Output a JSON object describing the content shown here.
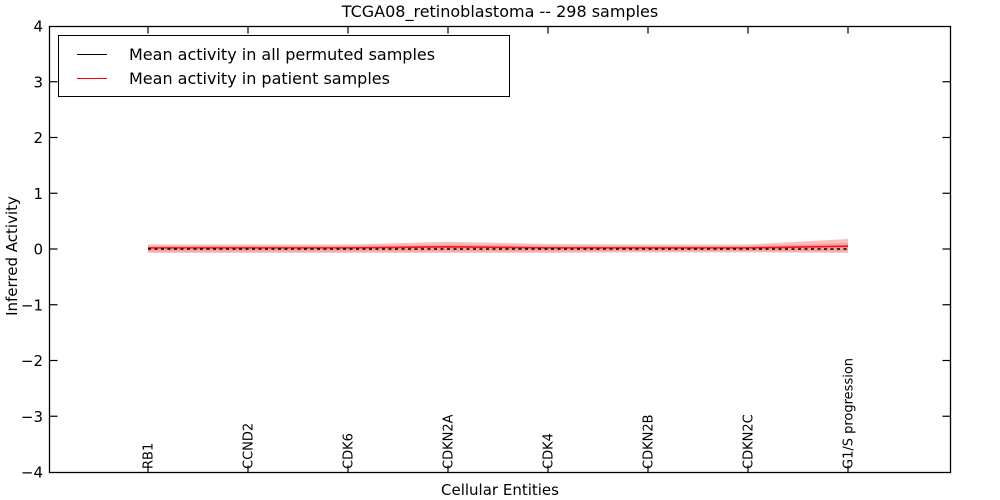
{
  "figure": {
    "background": "#ffffff",
    "spine_color": "#000000"
  },
  "chart_data": {
    "type": "line",
    "title": "TCGA08_retinoblastoma -- 298 samples",
    "xlabel": "Cellular Entities",
    "ylabel": "Inferred Activity",
    "ylim": [
      -4,
      4
    ],
    "ytick_labels": [
      "4",
      "3",
      "2",
      "1",
      "0",
      "−1",
      "−2",
      "−3",
      "−4"
    ],
    "ytick_values": [
      4,
      3,
      2,
      1,
      0,
      -1,
      -2,
      -3,
      -4
    ],
    "categories": [
      "RB1",
      "CCND2",
      "CDK6",
      "CDKN2A",
      "CDK4",
      "CDKN2B",
      "CDKN2C",
      "G1/S progression"
    ],
    "grid": false,
    "legend_position": "upper left",
    "series": [
      {
        "name": "Mean activity in all permuted samples",
        "color": "#000000",
        "style": "dashed",
        "values": [
          0,
          0,
          0,
          0,
          0,
          0,
          0,
          0
        ]
      },
      {
        "name": "Mean activity in patient samples",
        "color": "#ff0000",
        "style": "solid",
        "values": [
          0.02,
          0.02,
          0.02,
          0.04,
          0.02,
          0.02,
          0.02,
          0.05
        ]
      }
    ],
    "band": {
      "name": "patient-sample spread",
      "color": "#f08080",
      "outer_upper": [
        0.08,
        0.08,
        0.08,
        0.13,
        0.09,
        0.08,
        0.08,
        0.18
      ],
      "outer_lower": [
        -0.07,
        -0.07,
        -0.07,
        -0.07,
        -0.07,
        -0.06,
        -0.06,
        -0.07
      ],
      "inner_upper": [
        0.05,
        0.05,
        0.05,
        0.08,
        0.055,
        0.05,
        0.05,
        0.11
      ],
      "inner_lower": [
        -0.045,
        -0.045,
        -0.045,
        -0.045,
        -0.045,
        -0.04,
        -0.04,
        -0.045
      ]
    }
  }
}
